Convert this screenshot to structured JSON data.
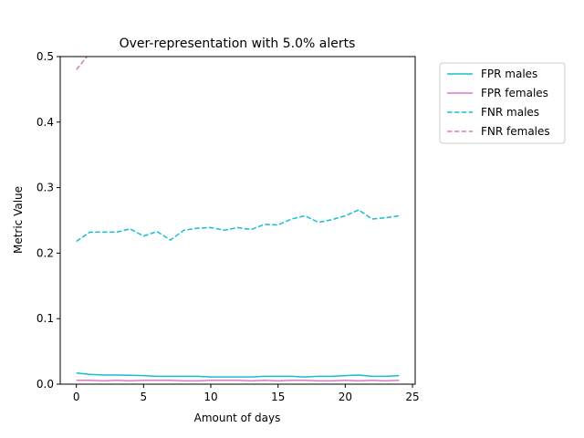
{
  "chart_data": {
    "type": "line",
    "title": "Over-representation with 5.0% alerts",
    "xlabel": "Amount of days",
    "ylabel": "Metric Value",
    "x": [
      0,
      1,
      2,
      3,
      4,
      5,
      6,
      7,
      8,
      9,
      10,
      11,
      12,
      13,
      14,
      15,
      16,
      17,
      18,
      19,
      20,
      21,
      22,
      23,
      24
    ],
    "series": [
      {
        "name": "FPR males",
        "color": "#17becf",
        "linestyle": "solid",
        "values": [
          0.017,
          0.015,
          0.014,
          0.014,
          0.0135,
          0.013,
          0.012,
          0.012,
          0.012,
          0.012,
          0.011,
          0.011,
          0.011,
          0.011,
          0.012,
          0.012,
          0.012,
          0.011,
          0.012,
          0.012,
          0.013,
          0.014,
          0.012,
          0.012,
          0.013
        ]
      },
      {
        "name": "FPR females",
        "color": "#e377c2",
        "linestyle": "solid",
        "values": [
          0.006,
          0.006,
          0.005,
          0.006,
          0.005,
          0.006,
          0.006,
          0.006,
          0.005,
          0.005,
          0.006,
          0.006,
          0.006,
          0.005,
          0.006,
          0.005,
          0.006,
          0.006,
          0.005,
          0.005,
          0.006,
          0.005,
          0.006,
          0.005,
          0.006
        ]
      },
      {
        "name": "FNR males",
        "color": "#17becf",
        "linestyle": "dashed",
        "values": [
          0.218,
          0.232,
          0.232,
          0.232,
          0.237,
          0.226,
          0.233,
          0.22,
          0.235,
          0.238,
          0.239,
          0.235,
          0.239,
          0.236,
          0.244,
          0.243,
          0.252,
          0.257,
          0.247,
          0.251,
          0.257,
          0.266,
          0.252,
          0.254,
          0.257
        ]
      },
      {
        "name": "FNR females",
        "color": "#e377c2",
        "linestyle": "dashed",
        "values": [
          0.48,
          0.505,
          null,
          null,
          null,
          null,
          null,
          null,
          null,
          null,
          null,
          null,
          null,
          null,
          null,
          null,
          null,
          null,
          null,
          null,
          null,
          null,
          null,
          null,
          null
        ]
      }
    ],
    "xlim": [
      -1.2,
      25.2
    ],
    "ylim": [
      0,
      0.5
    ],
    "xticks": [
      0,
      5,
      10,
      15,
      20,
      25
    ],
    "yticks": [
      {
        "value": 0,
        "label": "0.0"
      },
      {
        "value": 0.1,
        "label": "0.1"
      },
      {
        "value": 0.2,
        "label": "0.2"
      },
      {
        "value": 0.3,
        "label": "0.3"
      },
      {
        "value": 0.4,
        "label": "0.4"
      },
      {
        "value": 0.5,
        "label": "0.5"
      }
    ],
    "grid": false,
    "legend": "outside-upper-right"
  }
}
